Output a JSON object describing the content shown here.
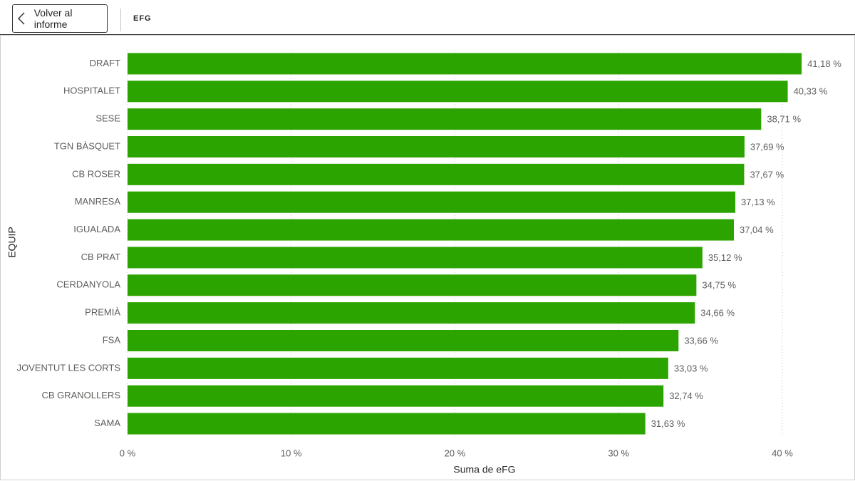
{
  "header": {
    "back_button": "Volver al informe",
    "title": "EFG"
  },
  "chart_data": {
    "type": "bar",
    "orientation": "horizontal",
    "x_label": "Suma de eFG",
    "y_label": "EQUIP",
    "categories": [
      "DRAFT",
      "HOSPITALET",
      "SESE",
      "TGN BÀSQUET",
      "CB ROSER",
      "MANRESA",
      "IGUALADA",
      "CB PRAT",
      "CERDANYOLA",
      "PREMIÀ",
      "FSA",
      "JOVENTUT LES CORTS",
      "CB GRANOLLERS",
      "SAMA"
    ],
    "values": [
      41.18,
      40.33,
      38.71,
      37.69,
      37.67,
      37.13,
      37.04,
      35.12,
      34.75,
      34.66,
      33.66,
      33.03,
      32.74,
      31.63
    ],
    "value_labels": [
      "41,18 %",
      "40,33 %",
      "38,71 %",
      "37,69 %",
      "37,67 %",
      "37,13 %",
      "37,04 %",
      "35,12 %",
      "34,75 %",
      "34,66 %",
      "33,66 %",
      "33,03 %",
      "32,74 %",
      "31,63 %"
    ],
    "color": "#2ca400",
    "xlim": [
      0,
      43.5
    ],
    "xticks": [
      {
        "value": 0,
        "label": "0 %"
      },
      {
        "value": 10,
        "label": "10 %"
      },
      {
        "value": 20,
        "label": "20 %"
      },
      {
        "value": 30,
        "label": "30 %"
      },
      {
        "value": 40,
        "label": "40 %"
      }
    ],
    "grid": true
  }
}
